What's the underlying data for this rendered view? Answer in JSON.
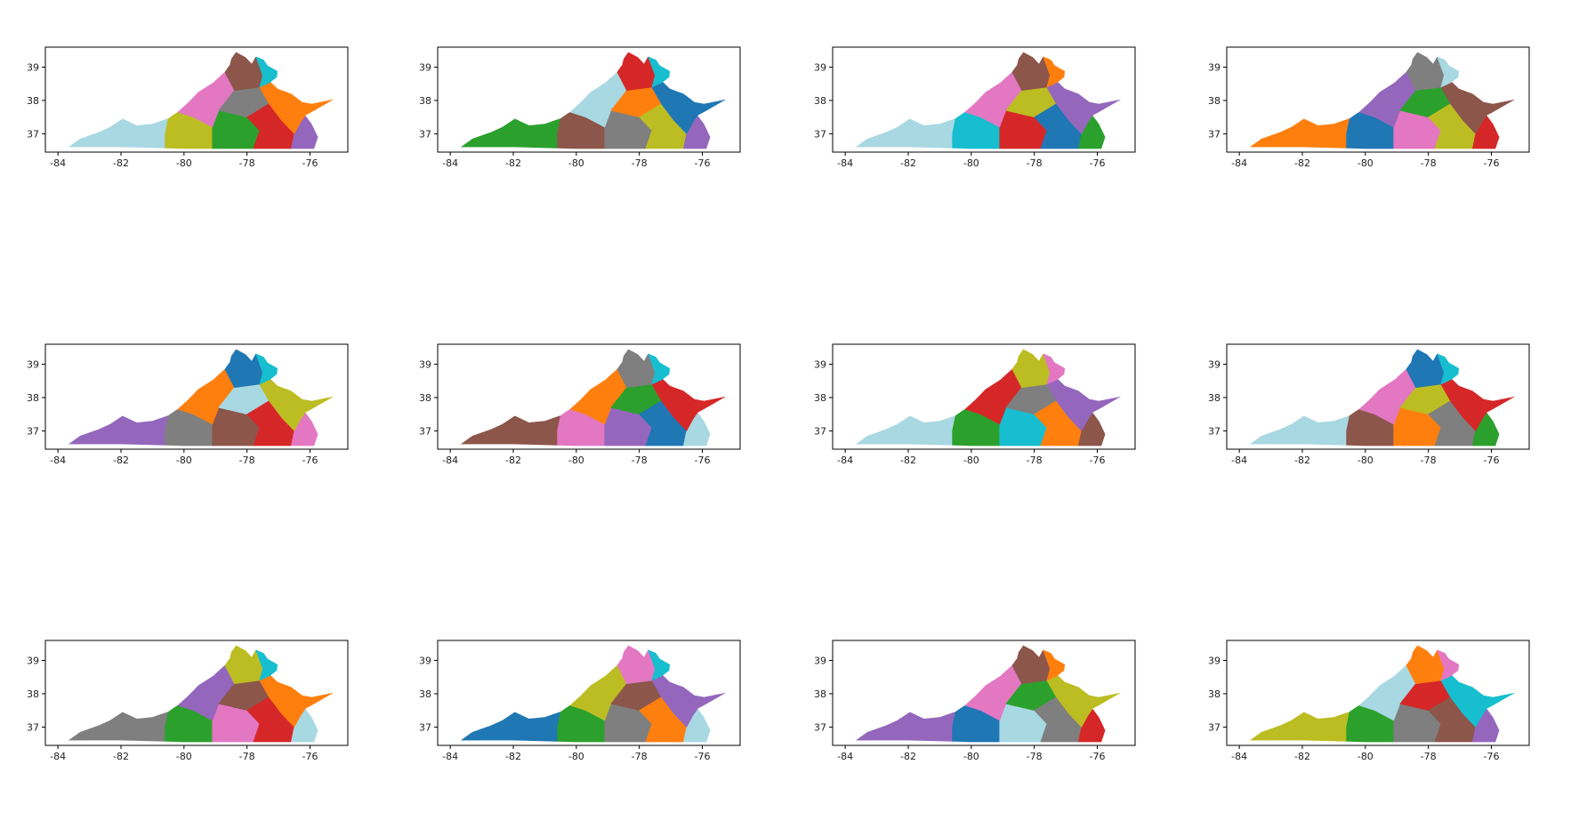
{
  "figure": {
    "grid": {
      "rows": 3,
      "cols": 4
    },
    "background": "#ffffff"
  },
  "axes": {
    "xlim": [
      -84.4,
      -74.8
    ],
    "ylim": [
      36.45,
      39.6
    ],
    "xticks": [
      -84,
      -82,
      -80,
      -78,
      -76
    ],
    "yticks": [
      37,
      38,
      39
    ],
    "xtick_labels": [
      "-84",
      "-82",
      "-80",
      "-78",
      "-76"
    ],
    "ytick_labels": [
      "37",
      "38",
      "39"
    ]
  },
  "palette": {
    "light_blue": "#a8d8e2",
    "olive": "#bcbd22",
    "green": "#2ca02c",
    "pink": "#e377c2",
    "brown": "#8c564b",
    "red": "#d62728",
    "purple": "#9467bd",
    "orange": "#ff7f0e",
    "blue": "#1f77b4",
    "gray": "#7f7f7f",
    "cyan": "#17becf"
  },
  "maps": [
    {
      "id": 1,
      "zone_colors": [
        "light_blue",
        "olive",
        "green",
        "pink",
        "gray",
        "brown",
        "red",
        "purple",
        "orange",
        "cyan"
      ]
    },
    {
      "id": 2,
      "zone_colors": [
        "green",
        "brown",
        "gray",
        "light_blue",
        "orange",
        "red",
        "olive",
        "purple",
        "blue",
        "cyan"
      ]
    },
    {
      "id": 3,
      "zone_colors": [
        "light_blue",
        "cyan",
        "red",
        "pink",
        "olive",
        "brown",
        "blue",
        "green",
        "purple",
        "orange"
      ]
    },
    {
      "id": 4,
      "zone_colors": [
        "orange",
        "blue",
        "pink",
        "purple",
        "green",
        "gray",
        "olive",
        "red",
        "brown",
        "light_blue"
      ]
    },
    {
      "id": 5,
      "zone_colors": [
        "purple",
        "gray",
        "brown",
        "orange",
        "light_blue",
        "blue",
        "red",
        "pink",
        "olive",
        "cyan"
      ]
    },
    {
      "id": 6,
      "zone_colors": [
        "brown",
        "pink",
        "purple",
        "orange",
        "green",
        "gray",
        "blue",
        "light_blue",
        "red",
        "cyan"
      ]
    },
    {
      "id": 7,
      "zone_colors": [
        "light_blue",
        "green",
        "cyan",
        "red",
        "gray",
        "olive",
        "orange",
        "brown",
        "purple",
        "pink"
      ]
    },
    {
      "id": 8,
      "zone_colors": [
        "light_blue",
        "brown",
        "orange",
        "pink",
        "olive",
        "blue",
        "gray",
        "green",
        "red",
        "cyan"
      ]
    },
    {
      "id": 9,
      "zone_colors": [
        "gray",
        "green",
        "pink",
        "purple",
        "brown",
        "olive",
        "red",
        "light_blue",
        "orange",
        "cyan"
      ]
    },
    {
      "id": 10,
      "zone_colors": [
        "blue",
        "green",
        "gray",
        "olive",
        "brown",
        "pink",
        "orange",
        "light_blue",
        "purple",
        "cyan"
      ]
    },
    {
      "id": 11,
      "zone_colors": [
        "purple",
        "blue",
        "light_blue",
        "pink",
        "green",
        "brown",
        "gray",
        "red",
        "olive",
        "orange"
      ]
    },
    {
      "id": 12,
      "zone_colors": [
        "olive",
        "green",
        "gray",
        "light_blue",
        "red",
        "orange",
        "brown",
        "purple",
        "cyan",
        "pink"
      ]
    }
  ]
}
